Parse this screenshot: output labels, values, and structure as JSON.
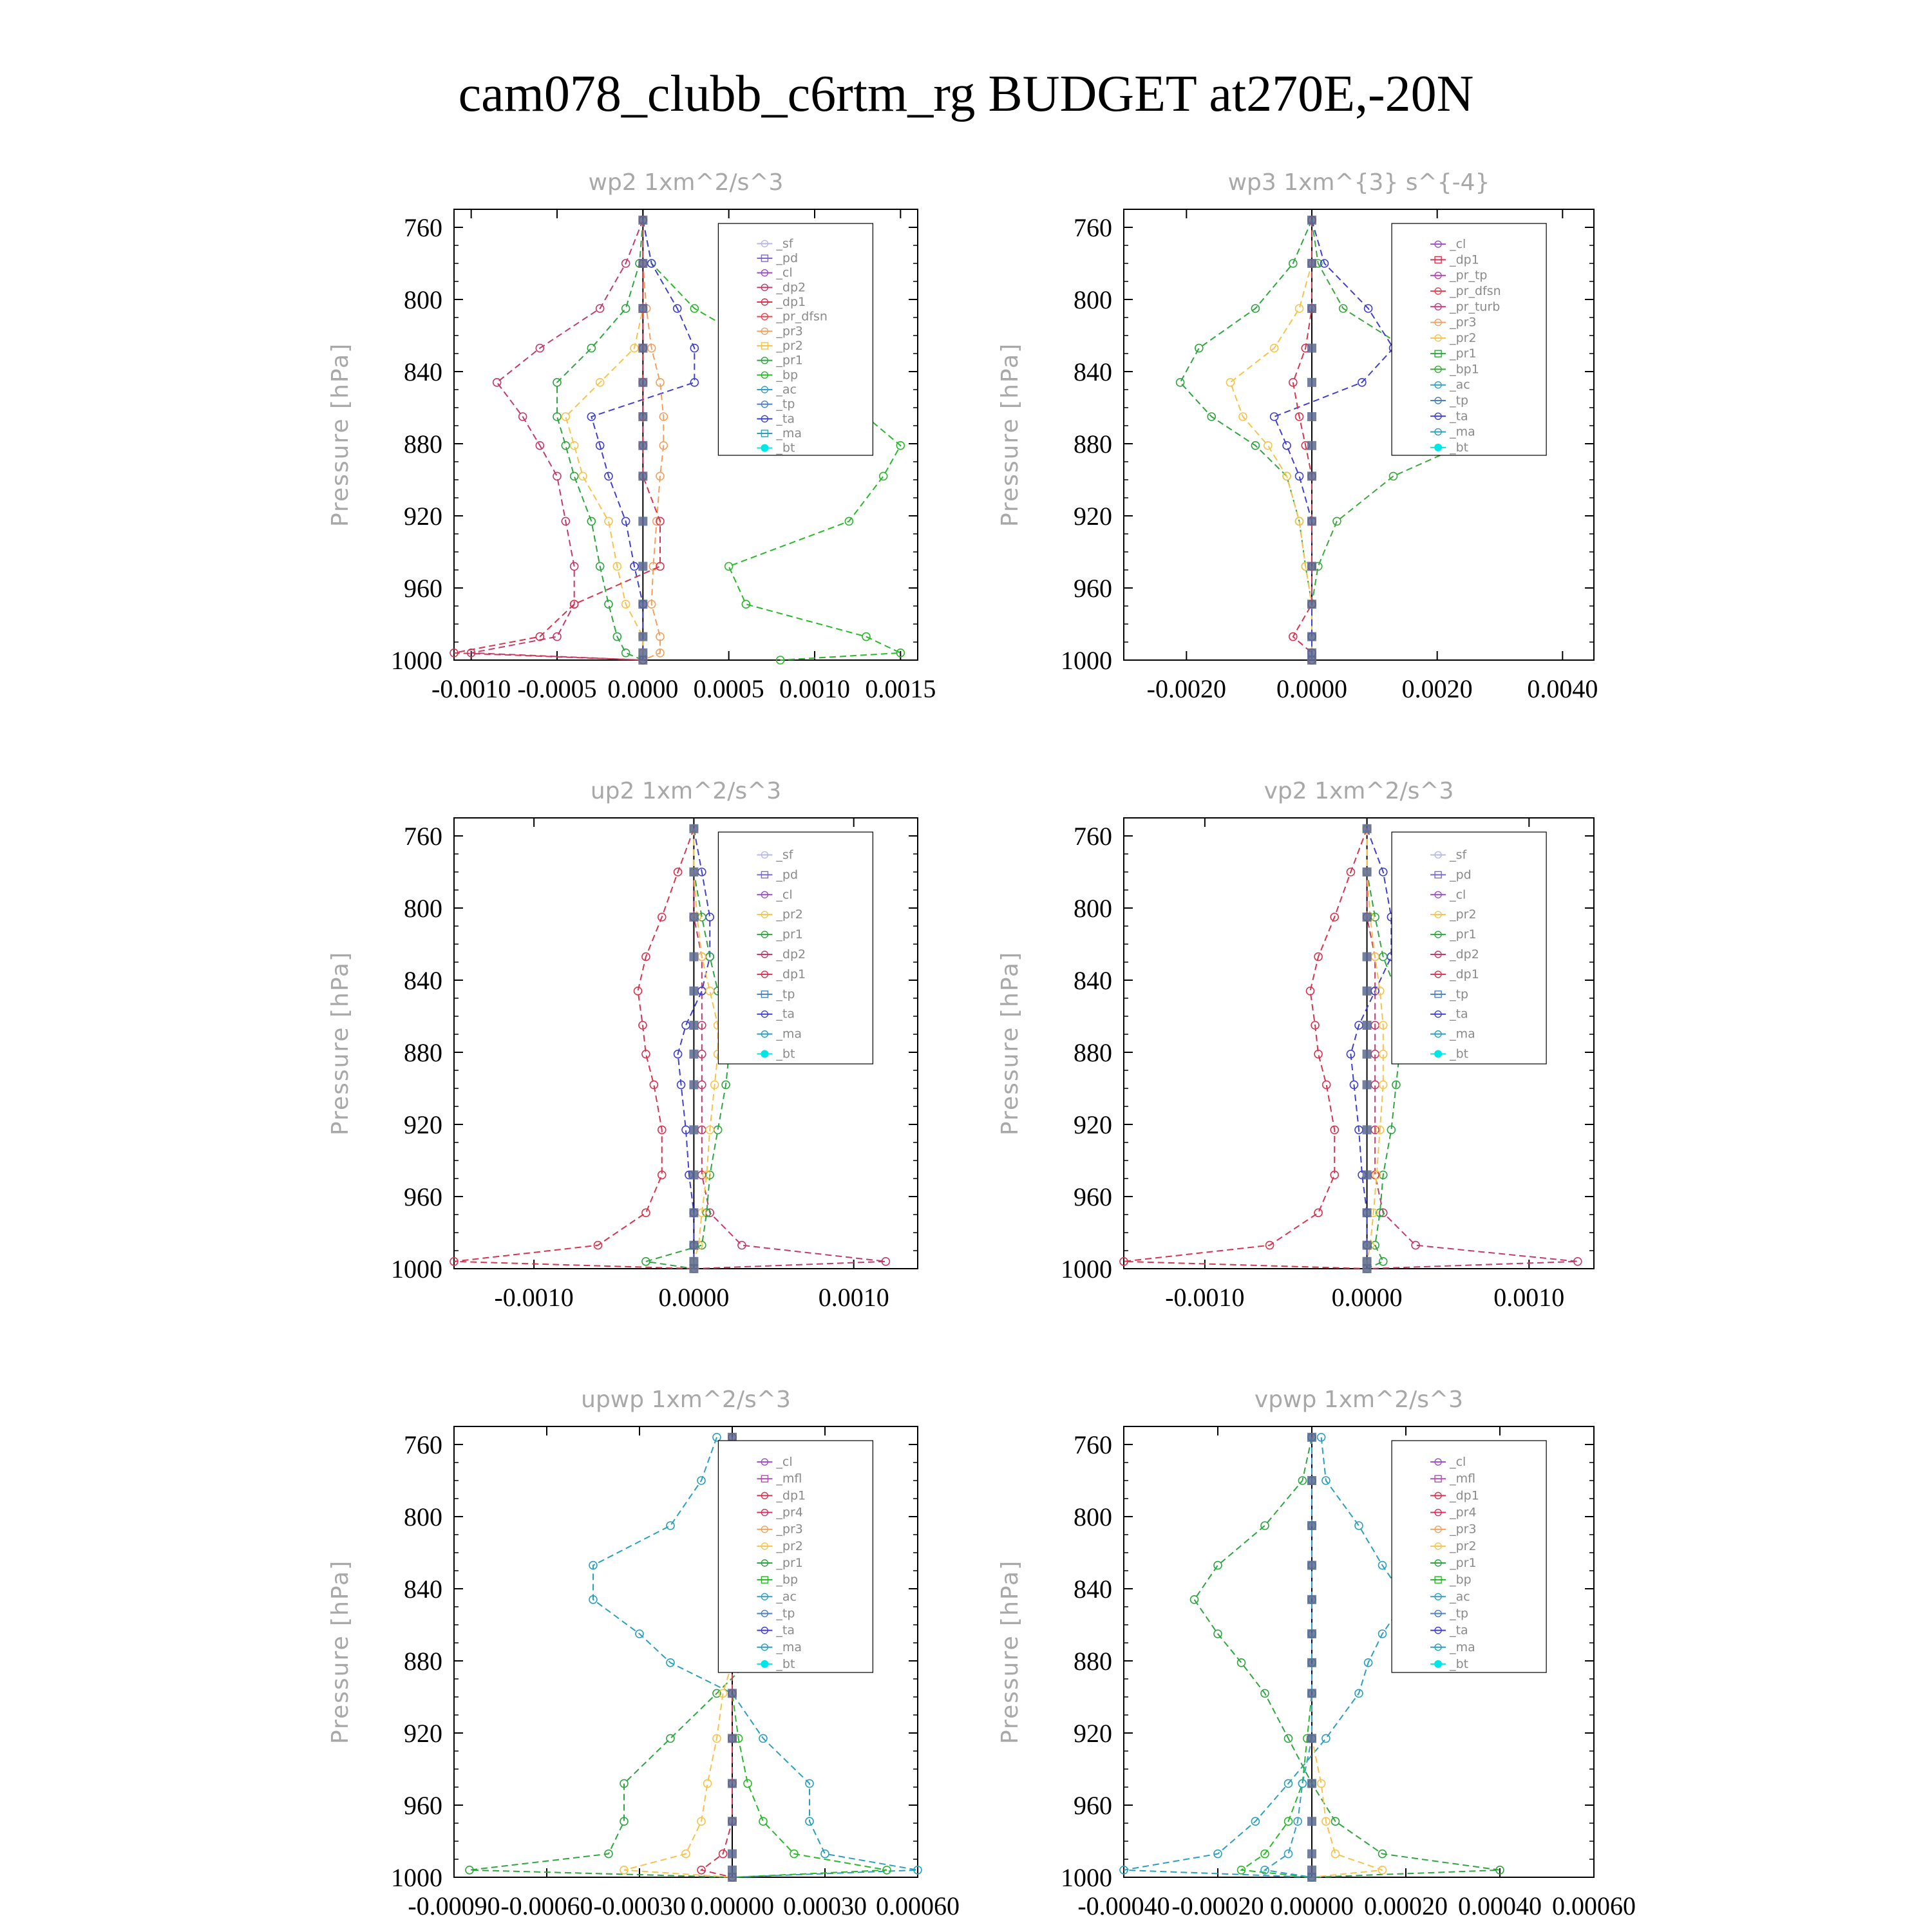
{
  "page_title": "cam078_clubb_c6rtm_rg  BUDGET at270E,-20N",
  "colors": {
    "_sf": "#b7b7e8",
    "_pd": "#7b6ad4",
    "_cl": "#9a4ec7",
    "_dp2": "#c23b6b",
    "_dp1": "#d8344f",
    "_pr_dfsn": "#e8454f",
    "_pr3": "#f0a060",
    "_pr2": "#f6c34c",
    "_pr1": "#2ea63f",
    "_bp": "#28b928",
    "_ac": "#34a0c8",
    "_tp": "#4a7fc0",
    "_ta": "#4040d0",
    "_ma": "#2a9fc0",
    "_bt": "#00e5e5",
    "_pr_tp": "#b044b0",
    "_pr_turb": "#c83a88",
    "_bp1": "#3aa83a",
    "_mfl": "#b050b0",
    "_pr4": "#d83060"
  },
  "chart_data": [
    {
      "type": "line",
      "title": "wp2   1xm^2/s^3",
      "ylabel": "Pressure [hPa]",
      "xlim": [
        -0.0011,
        0.0016
      ],
      "ylim": [
        750,
        1000
      ],
      "xticks": [
        -0.001,
        -0.0005,
        0.0,
        0.0005,
        0.001,
        0.0015
      ],
      "xtick_labels": [
        "-0.0010",
        "-0.0005",
        "0.0000",
        "0.0005",
        "0.0010",
        "0.0015"
      ],
      "yticks": [
        760,
        800,
        840,
        880,
        920,
        960,
        1000
      ],
      "legend": [
        "_sf",
        "_pd",
        "_cl",
        "_dp2",
        "_dp1",
        "_pr_dfsn",
        "_pr3",
        "_pr2",
        "_pr1",
        "_bp",
        "_ac",
        "_tp",
        "_ta",
        "_ma",
        "_bt"
      ],
      "pressure": [
        756,
        780,
        805,
        827,
        846,
        865,
        881,
        898,
        923,
        948,
        969,
        987,
        996,
        1000
      ],
      "series": [
        {
          "name": "_dp2",
          "values": [
            0,
            -0.0001,
            -0.00025,
            -0.0006,
            -0.00085,
            -0.0007,
            -0.0006,
            -0.0005,
            -0.00045,
            -0.0004,
            -0.0004,
            -0.0005,
            -0.001,
            0
          ]
        },
        {
          "name": "_pr1",
          "values": [
            0,
            -2e-05,
            -0.0001,
            -0.0003,
            -0.0005,
            -0.0005,
            -0.00045,
            -0.0004,
            -0.0003,
            -0.00025,
            -0.0002,
            -0.00015,
            -0.0001,
            0
          ]
        },
        {
          "name": "_bp",
          "values": [
            0,
            5e-05,
            0.0003,
            0.0007,
            0.0011,
            0.0013,
            0.0015,
            0.0014,
            0.0012,
            0.0005,
            0.0006,
            0.0013,
            0.0015,
            0.0008
          ]
        },
        {
          "name": "_ta",
          "values": [
            0,
            5e-05,
            0.0002,
            0.0003,
            0.0003,
            -0.0003,
            -0.00025,
            -0.0002,
            -0.0001,
            -5e-05,
            0,
            0,
            0,
            0
          ]
        },
        {
          "name": "_pr2",
          "values": [
            0,
            0,
            0,
            -5e-05,
            -0.00025,
            -0.00045,
            -0.0004,
            -0.00035,
            -0.0002,
            -0.00015,
            -0.0001,
            0,
            0,
            0
          ]
        },
        {
          "name": "_pr3",
          "values": [
            0,
            0,
            2e-05,
            5e-05,
            0.0001,
            0.00012,
            0.00012,
            0.0001,
            8e-05,
            6e-05,
            5e-05,
            0.0001,
            0.0001,
            0
          ]
        },
        {
          "name": "_dp1",
          "values": [
            0,
            0,
            0,
            0,
            0,
            0,
            0,
            0,
            0.0001,
            0.0001,
            -0.0004,
            -0.0006,
            -0.0011,
            0
          ]
        }
      ]
    },
    {
      "type": "line",
      "title": "wp3   1xm^{3} s^{-4}",
      "ylabel": "Pressure [hPa]",
      "xlim": [
        -0.003,
        0.0045
      ],
      "ylim": [
        750,
        1000
      ],
      "xticks": [
        -0.002,
        0.0,
        0.002,
        0.004
      ],
      "xtick_labels": [
        "-0.0020",
        "0.0000",
        "0.0020",
        "0.0040"
      ],
      "yticks": [
        760,
        800,
        840,
        880,
        920,
        960,
        1000
      ],
      "legend": [
        "_cl",
        "_dp1",
        "_pr_tp",
        "_pr_dfsn",
        "_pr_turb",
        "_pr3",
        "_pr2",
        "_pr1",
        "_bp1",
        "_ac",
        "_tp",
        "_ta",
        "_ma",
        "_bt"
      ],
      "pressure": [
        756,
        780,
        805,
        827,
        846,
        865,
        881,
        898,
        923,
        948,
        969,
        987,
        996,
        1000
      ],
      "series": [
        {
          "name": "_pr1",
          "values": [
            0,
            -0.0003,
            -0.0009,
            -0.0018,
            -0.0021,
            -0.0016,
            -0.0009,
            -0.0004,
            -0.0002,
            -0.0001,
            0,
            0,
            0,
            0
          ]
        },
        {
          "name": "_pr2",
          "values": [
            0,
            0,
            -0.0002,
            -0.0006,
            -0.0013,
            -0.0011,
            -0.0007,
            -0.0004,
            -0.0002,
            -0.0001,
            0,
            0,
            0,
            0
          ]
        },
        {
          "name": "_bp1",
          "values": [
            0,
            0.0001,
            0.0005,
            0.0015,
            0.0033,
            0.0035,
            0.0024,
            0.0013,
            0.0004,
            0.0001,
            0,
            0,
            0,
            0
          ]
        },
        {
          "name": "_ta",
          "values": [
            0,
            0.0002,
            0.0009,
            0.0013,
            0.0008,
            -0.0006,
            -0.0004,
            -0.0002,
            0,
            0,
            0,
            0,
            0,
            0
          ]
        },
        {
          "name": "_dp1",
          "values": [
            0,
            0,
            0,
            -0.0001,
            -0.0003,
            -0.0002,
            -0.0001,
            0,
            0,
            0,
            0,
            -0.0003,
            0,
            0
          ]
        }
      ]
    },
    {
      "type": "line",
      "title": "up2   1xm^2/s^3",
      "ylabel": "Pressure [hPa]",
      "xlim": [
        -0.0015,
        0.0014
      ],
      "ylim": [
        750,
        1000
      ],
      "xticks": [
        -0.001,
        0.0,
        0.001
      ],
      "xtick_labels": [
        "-0.0010",
        "0.0000",
        "0.0010"
      ],
      "yticks": [
        760,
        800,
        840,
        880,
        920,
        960,
        1000
      ],
      "legend": [
        "_sf",
        "_pd",
        "_cl",
        "_pr2",
        "_pr1",
        "_dp2",
        "_dp1",
        "_tp",
        "_ta",
        "_ma",
        "_bt"
      ],
      "pressure": [
        756,
        780,
        805,
        827,
        846,
        865,
        881,
        898,
        923,
        948,
        969,
        987,
        996,
        1000
      ],
      "series": [
        {
          "name": "_dp1",
          "values": [
            0,
            -0.0001,
            -0.0002,
            -0.0003,
            -0.00035,
            -0.00032,
            -0.0003,
            -0.00025,
            -0.0002,
            -0.0002,
            -0.0003,
            -0.0006,
            -0.0015,
            0
          ]
        },
        {
          "name": "_dp2",
          "values": [
            0,
            0,
            0,
            5e-05,
            5e-05,
            5e-05,
            5e-05,
            5e-05,
            5e-05,
            5e-05,
            0.0001,
            0.0003,
            0.0012,
            0
          ]
        },
        {
          "name": "_ta",
          "values": [
            0,
            5e-05,
            0.0001,
            0.0001,
            5e-05,
            -5e-05,
            -0.0001,
            -8e-05,
            -5e-05,
            -3e-05,
            0,
            0,
            0,
            0
          ]
        },
        {
          "name": "_pr1",
          "values": [
            0,
            0,
            5e-05,
            0.0001,
            0.00015,
            0.0002,
            0.00022,
            0.0002,
            0.00015,
            0.0001,
            8e-05,
            5e-05,
            -0.0003,
            0
          ]
        },
        {
          "name": "_pr2",
          "values": [
            0,
            0,
            2e-05,
            5e-05,
            0.0001,
            0.00015,
            0.00015,
            0.00013,
            0.0001,
            8e-05,
            5e-05,
            3e-05,
            0,
            0
          ]
        }
      ]
    },
    {
      "type": "line",
      "title": "vp2   1xm^2/s^3",
      "ylabel": "Pressure [hPa]",
      "xlim": [
        -0.0015,
        0.0014
      ],
      "ylim": [
        750,
        1000
      ],
      "xticks": [
        -0.001,
        0.0,
        0.001
      ],
      "xtick_labels": [
        "-0.0010",
        "0.0000",
        "0.0010"
      ],
      "yticks": [
        760,
        800,
        840,
        880,
        920,
        960,
        1000
      ],
      "legend": [
        "_sf",
        "_pd",
        "_cl",
        "_pr2",
        "_pr1",
        "_dp2",
        "_dp1",
        "_tp",
        "_ta",
        "_ma",
        "_bt"
      ],
      "pressure": [
        756,
        780,
        805,
        827,
        846,
        865,
        881,
        898,
        923,
        948,
        969,
        987,
        996,
        1000
      ],
      "series": [
        {
          "name": "_dp1",
          "values": [
            0,
            -0.0001,
            -0.0002,
            -0.0003,
            -0.00035,
            -0.00032,
            -0.0003,
            -0.00025,
            -0.0002,
            -0.0002,
            -0.0003,
            -0.0006,
            -0.0015,
            0
          ]
        },
        {
          "name": "_dp2",
          "values": [
            0,
            0,
            0,
            5e-05,
            5e-05,
            5e-05,
            5e-05,
            5e-05,
            5e-05,
            5e-05,
            0.0001,
            0.0003,
            0.0013,
            0
          ]
        },
        {
          "name": "_ta",
          "values": [
            0,
            0.0001,
            0.00015,
            0.00015,
            5e-05,
            -5e-05,
            -0.0001,
            -8e-05,
            -5e-05,
            -3e-05,
            0,
            0,
            0,
            0
          ]
        },
        {
          "name": "_pr1",
          "values": [
            0,
            0,
            5e-05,
            0.0001,
            0.00018,
            0.00022,
            0.0002,
            0.00018,
            0.00015,
            0.0001,
            8e-05,
            5e-05,
            0.0001,
            0
          ]
        },
        {
          "name": "_pr2",
          "values": [
            0,
            0,
            2e-05,
            5e-05,
            8e-05,
            0.0001,
            0.0001,
            0.0001,
            8e-05,
            6e-05,
            4e-05,
            2e-05,
            0,
            0
          ]
        }
      ]
    },
    {
      "type": "line",
      "title": "upwp   1xm^2/s^3",
      "ylabel": "Pressure [hPa]",
      "xlim": [
        -0.0009,
        0.0006
      ],
      "ylim": [
        750,
        1000
      ],
      "xticks": [
        -0.0009,
        -0.0006,
        -0.0003,
        0.0,
        0.0003,
        0.0006
      ],
      "xtick_labels": [
        "-0.00090",
        "-0.00060",
        "-0.00030",
        "0.00000",
        "0.00030",
        "0.00060"
      ],
      "yticks": [
        760,
        800,
        840,
        880,
        920,
        960,
        1000
      ],
      "legend": [
        "_cl",
        "_mfl",
        "_dp1",
        "_pr4",
        "_pr3",
        "_pr2",
        "_pr1",
        "_bp",
        "_ac",
        "_tp",
        "_ta",
        "_ma",
        "_bt"
      ],
      "pressure": [
        756,
        780,
        805,
        827,
        846,
        865,
        881,
        898,
        923,
        948,
        969,
        987,
        996,
        1000
      ],
      "series": [
        {
          "name": "_ma",
          "values": [
            -5e-05,
            -0.0001,
            -0.0002,
            -0.00045,
            -0.00045,
            -0.0003,
            -0.0002,
            0,
            0.0001,
            0.00025,
            0.00025,
            0.0003,
            0.0006,
            0
          ]
        },
        {
          "name": "_pr1",
          "values": [
            0,
            0,
            5e-05,
            0.0002,
            0.00015,
            0.0001,
            5e-05,
            -5e-05,
            -0.0002,
            -0.00035,
            -0.00035,
            -0.0004,
            -0.00085,
            0
          ]
        },
        {
          "name": "_pr2",
          "values": [
            0,
            0,
            0,
            0,
            0,
            0,
            0,
            -3e-05,
            -5e-05,
            -8e-05,
            -0.0001,
            -0.00015,
            -0.00035,
            0
          ]
        },
        {
          "name": "_bp",
          "values": [
            0,
            0,
            0,
            0,
            0,
            0,
            0,
            0,
            2e-05,
            5e-05,
            0.0001,
            0.0002,
            0.0005,
            0
          ]
        },
        {
          "name": "_dp1",
          "values": [
            0,
            0,
            0,
            0,
            0,
            0,
            0,
            0,
            0,
            0,
            0,
            -3e-05,
            -0.0001,
            0
          ]
        }
      ]
    },
    {
      "type": "line",
      "title": "vpwp   1xm^2/s^3",
      "ylabel": "Pressure [hPa]",
      "xlim": [
        -0.0004,
        0.0006
      ],
      "ylim": [
        750,
        1000
      ],
      "xticks": [
        -0.0004,
        -0.0002,
        0.0,
        0.0002,
        0.0004,
        0.0006
      ],
      "xtick_labels": [
        "-0.00040",
        "-0.00020",
        "0.00000",
        "0.00020",
        "0.00040",
        "0.00060"
      ],
      "yticks": [
        760,
        800,
        840,
        880,
        920,
        960,
        1000
      ],
      "legend": [
        "_cl",
        "_mfl",
        "_dp1",
        "_pr4",
        "_pr3",
        "_pr2",
        "_pr1",
        "_bp",
        "_ac",
        "_tp",
        "_ta",
        "_ma",
        "_bt"
      ],
      "pressure": [
        756,
        780,
        805,
        827,
        846,
        865,
        881,
        898,
        923,
        948,
        969,
        987,
        996,
        1000
      ],
      "series": [
        {
          "name": "_ma",
          "values": [
            2e-05,
            3e-05,
            0.0001,
            0.00015,
            0.0002,
            0.00015,
            0.00012,
            0.0001,
            3e-05,
            -5e-05,
            -0.00012,
            -0.0002,
            -0.0004,
            0
          ]
        },
        {
          "name": "_pr1",
          "values": [
            0,
            -2e-05,
            -0.0001,
            -0.0002,
            -0.00025,
            -0.0002,
            -0.00015,
            -0.0001,
            -5e-05,
            0,
            5e-05,
            0.00015,
            0.0004,
            0
          ]
        },
        {
          "name": "_pr2",
          "values": [
            0,
            0,
            0,
            0,
            0,
            0,
            0,
            0,
            0,
            2e-05,
            3e-05,
            5e-05,
            0.00015,
            0
          ]
        },
        {
          "name": "_bp",
          "values": [
            0,
            0,
            0,
            0,
            0,
            0,
            0,
            0,
            -1e-05,
            -2e-05,
            -5e-05,
            -0.0001,
            -0.00015,
            0
          ]
        },
        {
          "name": "_ac",
          "values": [
            0,
            0,
            0,
            0,
            0,
            0,
            0,
            0,
            0,
            -2e-05,
            -3e-05,
            -5e-05,
            -0.0001,
            0
          ]
        }
      ]
    }
  ]
}
